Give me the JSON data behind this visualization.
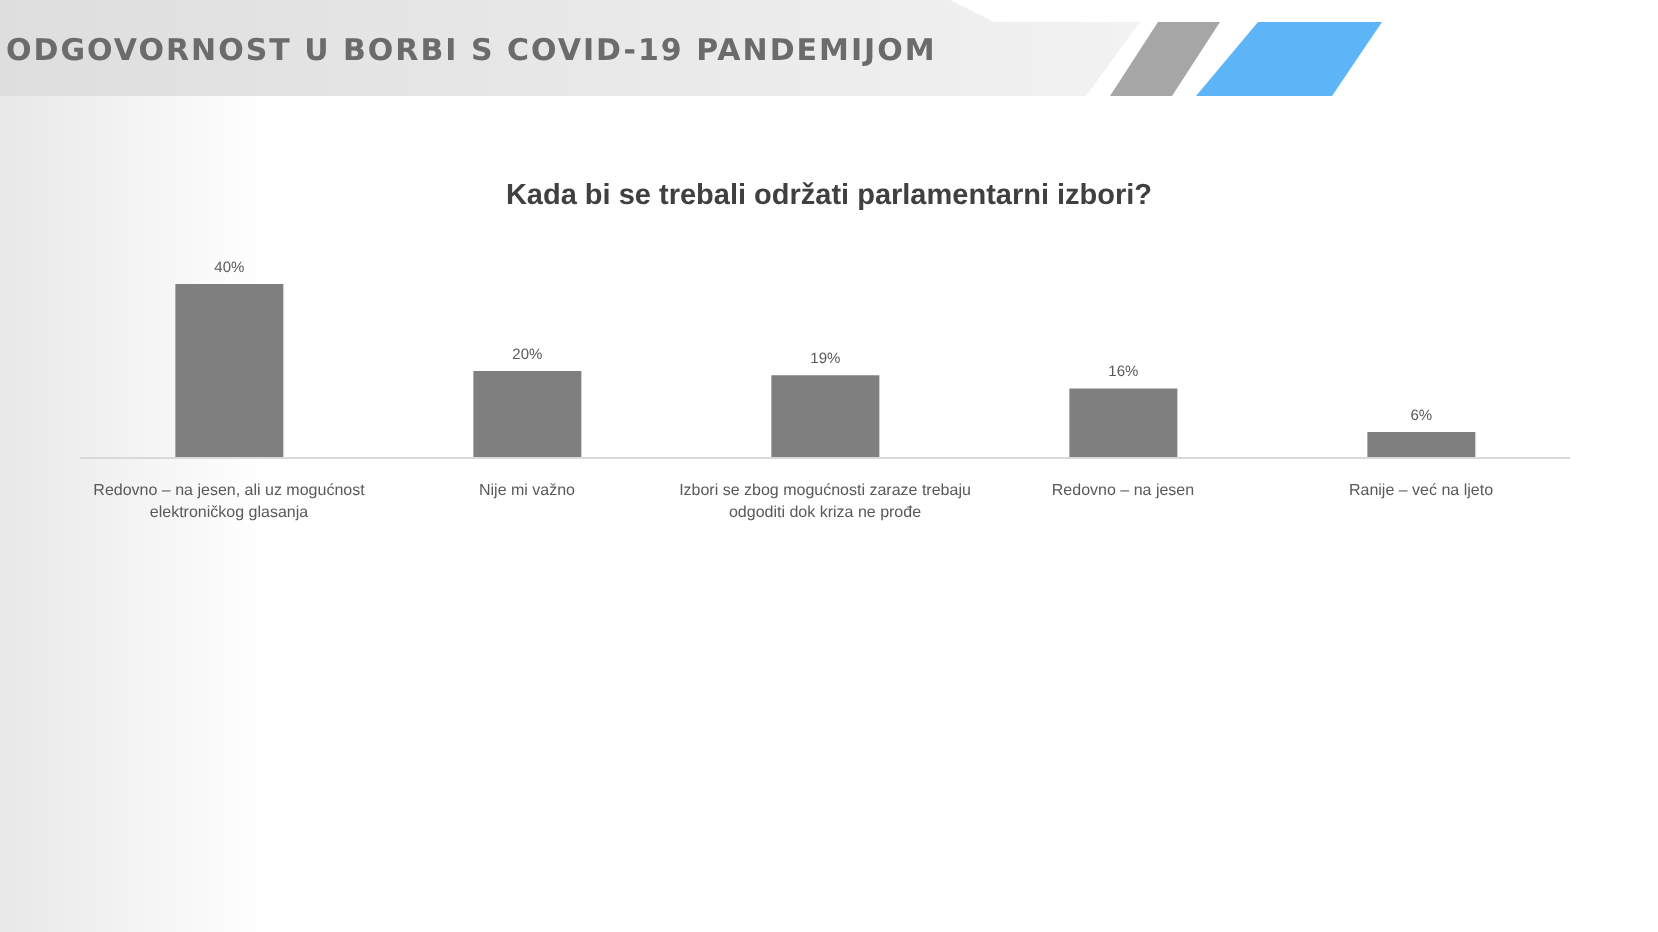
{
  "chart_data": {
    "type": "bar",
    "title": "ODGOVORNOST U BORBI S COVID-19 PANDEMIJOM",
    "subtitle": "Kada bi se trebali održati parlamentarni izbori?",
    "categories": [
      "Redovno – na jesen, ali uz mogućnost elektroničkog glasanja",
      "Nije mi važno",
      "Izbori se zbog mogućnosti zaraze trebaju odgoditi dok kriza ne prođe",
      "Redovno – na jesen",
      "Ranije – već na ljeto"
    ],
    "values": [
      40,
      20,
      19,
      16,
      6
    ],
    "color": "#7f7f7f",
    "value_labels": [
      "40%",
      "20%",
      "19%",
      "16%",
      "6%"
    ]
  }
}
